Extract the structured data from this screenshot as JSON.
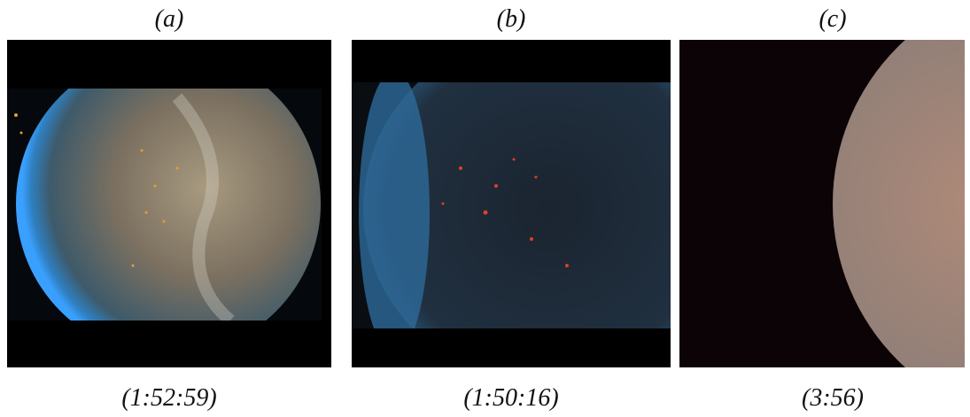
{
  "panels": [
    {
      "label": "(a)",
      "caption": "(1:52:59)"
    },
    {
      "label": "(b)",
      "caption": "(1:50:16)"
    },
    {
      "label": "(c)",
      "caption": "(3:56)"
    }
  ]
}
